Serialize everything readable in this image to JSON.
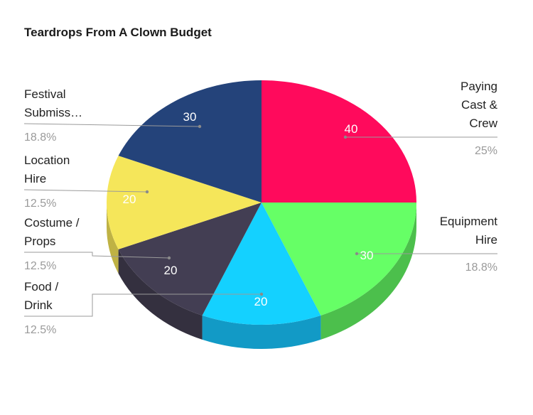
{
  "chart_data": {
    "type": "pie",
    "title": "Teardrops From A Clown Budget",
    "three_d": true,
    "legend": "none",
    "slices": [
      {
        "label": "Paying Cast & Crew",
        "label_lines": [
          "Paying",
          "Cast &",
          "Crew"
        ],
        "value": 40,
        "percent": "25%",
        "color": "#ff0a5c",
        "side_color": "#c80848"
      },
      {
        "label": "Equipment Hire",
        "label_lines": [
          "Equipment",
          "Hire"
        ],
        "value": 30,
        "percent": "18.8%",
        "color": "#66ff66",
        "side_color": "#4cbf4c"
      },
      {
        "label": "Food / Drink",
        "label_lines": [
          "Food /",
          "Drink"
        ],
        "value": 20,
        "percent": "12.5%",
        "color": "#14d1ff",
        "side_color": "#129ac6"
      },
      {
        "label": "Costume / Props",
        "label_lines": [
          "Costume /",
          "Props"
        ],
        "value": 20,
        "percent": "12.5%",
        "color": "#433e53",
        "side_color": "#34303f"
      },
      {
        "label": "Location Hire",
        "label_lines": [
          "Location",
          "Hire"
        ],
        "value": 20,
        "percent": "12.5%",
        "color": "#f5e65a",
        "side_color": "#bfb244"
      },
      {
        "label": "Festival Submiss…",
        "label_lines": [
          "Festival",
          "Submiss…"
        ],
        "value": 30,
        "percent": "18.8%",
        "color": "#24437a",
        "side_color": "#1a325c"
      }
    ]
  }
}
